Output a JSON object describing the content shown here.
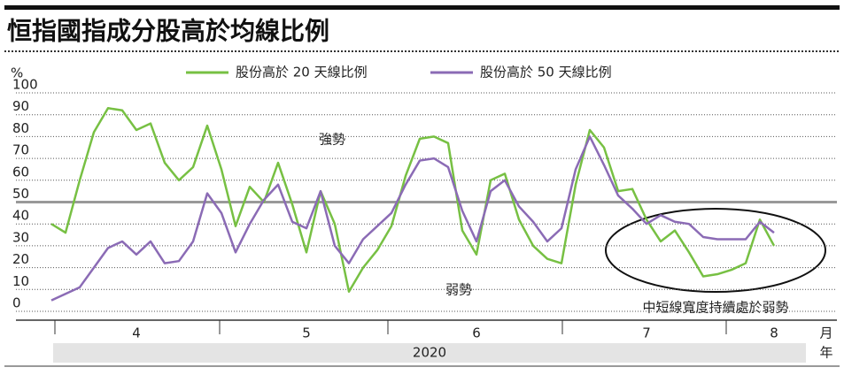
{
  "chart_data": {
    "type": "line",
    "title": "恒指國指成分股高於均線比例",
    "ylabel": "%",
    "x_unit": "月",
    "year": "2020",
    "year_unit": "年",
    "annotations": [
      "強勢",
      "弱勢",
      "中短線寬度持續處於弱勢"
    ],
    "categories": [
      null,
      null,
      null,
      null,
      null,
      null,
      "4",
      null,
      null,
      null,
      null,
      null,
      null,
      null,
      null,
      null,
      null,
      null,
      "5",
      null,
      null,
      null,
      null,
      null,
      null,
      null,
      null,
      null,
      null,
      null,
      "6",
      null,
      null,
      null,
      null,
      null,
      null,
      null,
      null,
      null,
      null,
      null,
      "7",
      null,
      null,
      null,
      null,
      null,
      null,
      null,
      null,
      "8"
    ],
    "series": [
      {
        "name": "股份高於 20 天線比例",
        "color": "#77c043",
        "values": [
          40,
          36,
          60,
          82,
          93,
          92,
          83,
          86,
          68,
          60,
          66,
          85,
          65,
          39,
          57,
          50,
          68,
          49,
          27,
          55,
          40,
          9,
          20,
          28,
          39,
          62,
          79,
          80,
          77,
          37,
          26,
          60,
          63,
          42,
          30,
          24,
          22,
          58,
          83,
          75,
          55,
          56,
          42,
          32,
          37,
          27,
          16,
          17,
          19,
          22,
          42,
          30
        ]
      },
      {
        "name": "股份高於 50 天線比例",
        "color": "#8b6bb5",
        "values": [
          5,
          8,
          11,
          20,
          29,
          32,
          26,
          32,
          22,
          23,
          32,
          54,
          45,
          27,
          40,
          51,
          58,
          41,
          38,
          55,
          30,
          22,
          33,
          39,
          45,
          58,
          69,
          70,
          66,
          46,
          32,
          55,
          60,
          48,
          41,
          32,
          38,
          65,
          80,
          67,
          53,
          47,
          40,
          44,
          41,
          40,
          34,
          33,
          33,
          33,
          41,
          36
        ]
      }
    ],
    "ylim": [
      0,
      100
    ],
    "yticks": [
      0,
      10,
      20,
      30,
      40,
      50,
      60,
      70,
      80,
      90,
      100
    ],
    "reference_line": 50,
    "grid": true
  }
}
